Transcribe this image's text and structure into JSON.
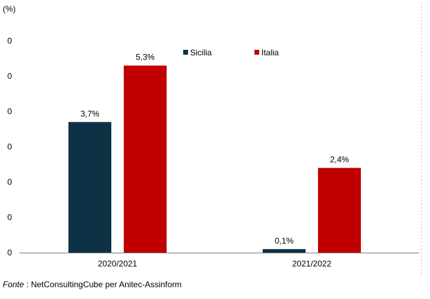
{
  "chart_data": {
    "type": "bar",
    "unit_label": "(%)",
    "categories": [
      "2020/2021",
      "2021/2022"
    ],
    "series": [
      {
        "name": "Sicilia",
        "color": "#0e3245",
        "values": [
          3.7,
          0.1
        ],
        "labels": [
          "3,7%",
          "0,1%"
        ]
      },
      {
        "name": "Italia",
        "color": "#c00000",
        "values": [
          5.3,
          2.4
        ],
        "labels": [
          "5,3%",
          "2,4%"
        ]
      }
    ],
    "y_tick_labels": [
      "0",
      "0",
      "0",
      "0",
      "0",
      "0",
      "0"
    ],
    "ylim": [
      0,
      6
    ],
    "legend_position": "top",
    "grid": false
  },
  "source": {
    "label": "Fonte",
    "separator": " : ",
    "text": "NetConsultingCube per Anitec-Assinform"
  }
}
